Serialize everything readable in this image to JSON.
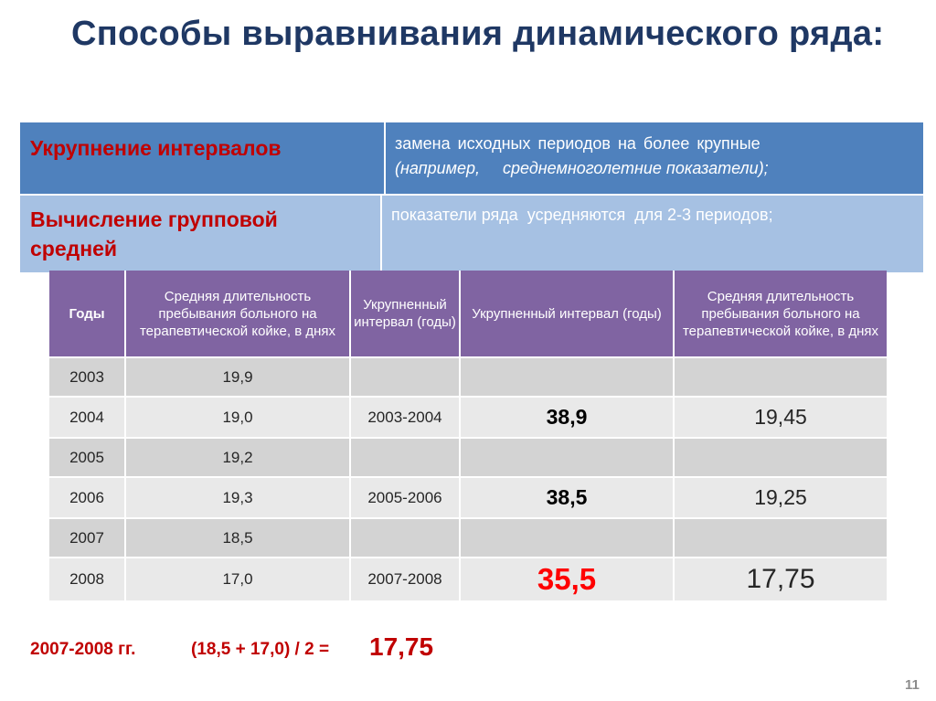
{
  "title": "Способы  выравнивания динамического  ряда:",
  "methods": [
    {
      "term": "Укрупнение интервалов",
      "description_line1": "замена исходных периодов на более крупные",
      "description_line2": "(например,     среднемноголетние показатели);"
    },
    {
      "term": "Вычисление  групповой средней",
      "description": "показатели ряда  усредняются  для 2-3 периодов;"
    }
  ],
  "table": {
    "headers": [
      "Годы",
      "Средняя длительность пребывания больного на терапевтической койке, в днях",
      "Укрупненный интервал (годы)",
      "Укрупненный интервал (годы)",
      "Средняя длительность пребывания больного на терапевтической койке, в днях"
    ],
    "rows": [
      {
        "year": "2003",
        "value": "19,9",
        "interval": "",
        "sum": "",
        "avg": ""
      },
      {
        "year": "2004",
        "value": "19,0",
        "interval": "2003-2004",
        "sum": "38,9",
        "avg": "19,45"
      },
      {
        "year": "2005",
        "value": "19,2",
        "interval": "",
        "sum": "",
        "avg": ""
      },
      {
        "year": "2006",
        "value": "19,3",
        "interval": "2005-2006",
        "sum": "38,5",
        "avg": "19,25"
      },
      {
        "year": "2007",
        "value": "18,5",
        "interval": "",
        "sum": "",
        "avg": ""
      },
      {
        "year": "2008",
        "value": "17,0",
        "interval": "2007-2008",
        "sum": "35,5",
        "avg": "17,75"
      }
    ]
  },
  "formula": {
    "period": "2007-2008 гг.",
    "expression": "(18,5 + 17,0) / 2 =",
    "result": "17,75"
  },
  "page_number": "11",
  "colors": {
    "title": "#1f3864",
    "term_red": "#c00000",
    "header_purple": "#8064a2",
    "row_blue_dark": "#4f81bd",
    "row_blue_light": "#a6c1e3",
    "highlight_red": "#ff0000"
  }
}
